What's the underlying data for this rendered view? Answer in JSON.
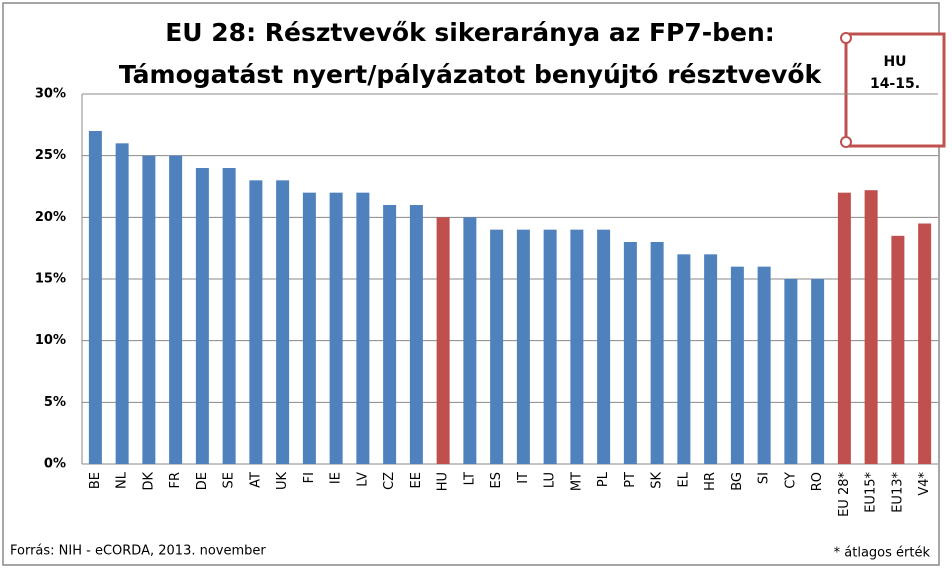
{
  "chart_data": {
    "type": "bar",
    "title": [
      "EU 28: Résztvevők sikeraránya az FP7-ben:",
      "Támogatást nyert/pályázatot benyújtó résztvevők"
    ],
    "categories": [
      "BE",
      "NL",
      "DK",
      "FR",
      "DE",
      "SE",
      "AT",
      "UK",
      "FI",
      "IE",
      "LV",
      "CZ",
      "EE",
      "HU",
      "LT",
      "ES",
      "IT",
      "LU",
      "MT",
      "PL",
      "PT",
      "SK",
      "EL",
      "HR",
      "BG",
      "SI",
      "CY",
      "RO",
      "EU 28*",
      "EU15*",
      "EU13*",
      "V4*"
    ],
    "values": [
      27,
      26,
      25,
      25,
      24,
      24,
      23,
      23,
      22,
      22,
      22,
      21,
      21,
      20,
      20,
      19,
      19,
      19,
      19,
      19,
      18,
      18,
      17,
      17,
      16,
      16,
      15,
      15,
      22,
      22.2,
      18.5,
      19.5
    ],
    "colors": [
      "#4f81bd",
      "#4f81bd",
      "#4f81bd",
      "#4f81bd",
      "#4f81bd",
      "#4f81bd",
      "#4f81bd",
      "#4f81bd",
      "#4f81bd",
      "#4f81bd",
      "#4f81bd",
      "#4f81bd",
      "#4f81bd",
      "#c0504d",
      "#4f81bd",
      "#4f81bd",
      "#4f81bd",
      "#4f81bd",
      "#4f81bd",
      "#4f81bd",
      "#4f81bd",
      "#4f81bd",
      "#4f81bd",
      "#4f81bd",
      "#4f81bd",
      "#4f81bd",
      "#4f81bd",
      "#4f81bd",
      "#c0504d",
      "#c0504d",
      "#c0504d",
      "#c0504d"
    ],
    "ylim": [
      0,
      30
    ],
    "yticks": [
      {
        "value": 0,
        "label": "0%"
      },
      {
        "value": 5,
        "label": "5%"
      },
      {
        "value": 10,
        "label": "10%"
      },
      {
        "value": 15,
        "label": "15%"
      },
      {
        "value": 20,
        "label": "20%"
      },
      {
        "value": 25,
        "label": "25%"
      },
      {
        "value": 30,
        "label": "30%"
      }
    ],
    "grid": true,
    "annotation": [
      "HU",
      "14-15."
    ],
    "source": "Forrás: NIH - eCORDA, 2013. november",
    "footnote": "* átlagos érték"
  }
}
